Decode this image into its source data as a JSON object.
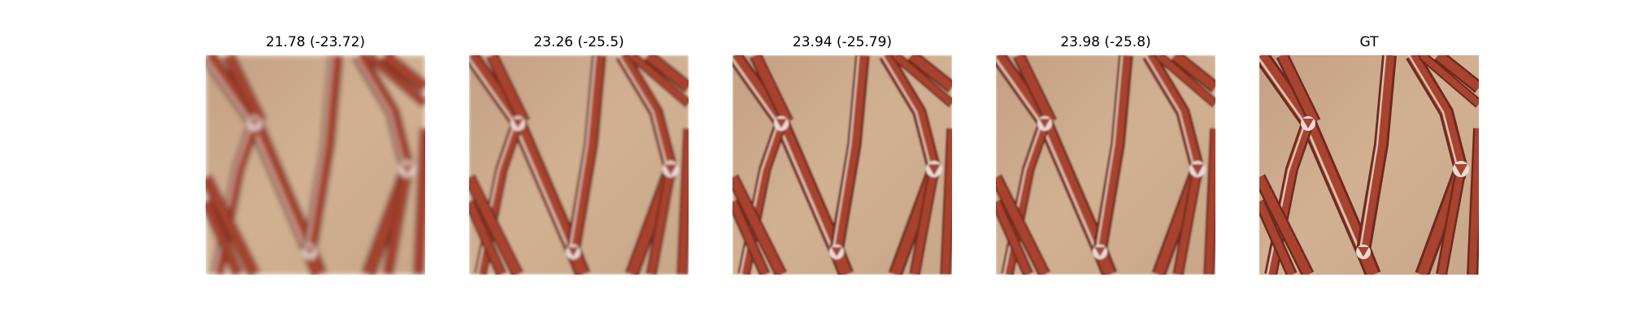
{
  "figure": {
    "panels": [
      {
        "title": "21.78 (-23.72)",
        "image_alt": "blurry reconstruction of red lattice pattern",
        "blur": 3.2
      },
      {
        "title": "23.26 (-25.5)",
        "image_alt": "reconstruction of red lattice pattern",
        "blur": 1.6
      },
      {
        "title": "23.94 (-25.79)",
        "image_alt": "reconstruction of red lattice pattern",
        "blur": 1.1
      },
      {
        "title": "23.98 (-25.8)",
        "image_alt": "reconstruction of red lattice pattern",
        "blur": 1.0
      },
      {
        "title": "GT",
        "image_alt": "ground truth red lattice pattern",
        "blur": 0
      }
    ],
    "colors": {
      "background_fabric": "#c9a385",
      "background_fabric_light": "#d4b294",
      "stripe_red": "#a8432f",
      "stripe_dark": "#6e2a1f",
      "stripe_highlight": "#d9c2b0",
      "joint_light": "#e6dcd4"
    }
  }
}
